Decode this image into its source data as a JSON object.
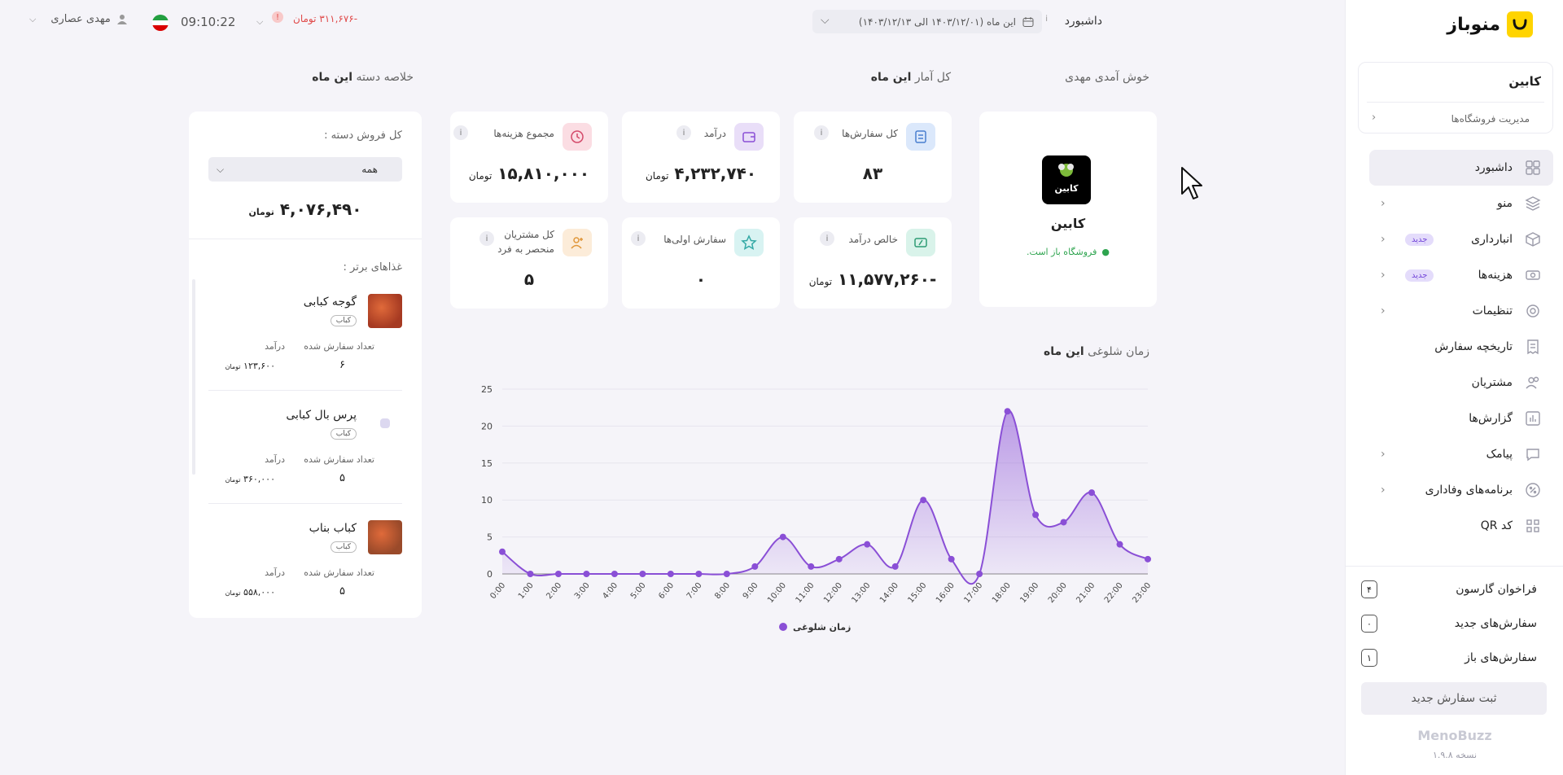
{
  "sidebar": {
    "brand_name": "منوباز",
    "store": {
      "name": "کابین",
      "manage_label": "مدیریت فروشگاه‌ها"
    },
    "items": [
      {
        "label": "داشبورد",
        "icon": "grid-icon",
        "active": true,
        "chevron": false,
        "badge": ""
      },
      {
        "label": "منو",
        "icon": "layers-icon",
        "chevron": true,
        "badge": ""
      },
      {
        "label": "انبارداری",
        "icon": "box-icon",
        "chevron": true,
        "badge": "جدید"
      },
      {
        "label": "هزینه‌ها",
        "icon": "money-icon",
        "chevron": true,
        "badge": "جدید"
      },
      {
        "label": "تنظیمات",
        "icon": "gear-icon",
        "chevron": true,
        "badge": ""
      },
      {
        "label": "تاریخچه سفارش",
        "icon": "receipt-icon",
        "chevron": false,
        "badge": ""
      },
      {
        "label": "مشتریان",
        "icon": "users-icon",
        "chevron": false,
        "badge": ""
      },
      {
        "label": "گزارش‌ها",
        "icon": "chart-icon",
        "chevron": false,
        "badge": ""
      },
      {
        "label": "پیامک",
        "icon": "message-icon",
        "chevron": true,
        "badge": ""
      },
      {
        "label": "برنامه‌های وفاداری",
        "icon": "percent-icon",
        "chevron": true,
        "badge": ""
      },
      {
        "label": "کد QR",
        "icon": "qr-icon",
        "chevron": false,
        "badge": ""
      }
    ],
    "counters": [
      {
        "label": "فراخوان گارسون",
        "value": "۴"
      },
      {
        "label": "سفارش‌های جدید",
        "value": "۰"
      },
      {
        "label": "سفارش‌های باز",
        "value": "۱"
      }
    ],
    "new_order_label": "ثبت سفارش جدید",
    "footer_brand": "MenoBuzz",
    "version": "نسخه ۱.۹.۸"
  },
  "header": {
    "title": "داشبورد",
    "info": "i",
    "date_range": "این ماه (۱۴۰۳/۱۲/۰۱ الی ۱۴۰۳/۱۲/۱۳)",
    "balance": "-۳۱۱,۶۷۶ تومان",
    "alert": "!",
    "clock": "09:10:22",
    "user_name": "مهدی عصاری"
  },
  "sections": {
    "welcome": "خوش آمدی مهدی",
    "stats_title_prefix": "کل آمار",
    "stats_title_bold": "این ماه",
    "category_prefix": "خلاصه دسته",
    "category_bold": "این ماه",
    "busy_prefix": "زمان شلوغی",
    "busy_bold": "این ماه"
  },
  "store_card": {
    "name": "کابین",
    "logo_text": "کابین",
    "status": "فروشگاه باز است."
  },
  "stats": [
    {
      "label": "کل سفارش‌ها",
      "value": "۸۳",
      "unit": "",
      "icon": "list-icon",
      "bg": "#dbe8fb",
      "fg": "#4a7fd0"
    },
    {
      "label": "درآمد",
      "value": "۴,۲۳۲,۷۴۰",
      "unit": "تومان",
      "icon": "wallet-icon",
      "bg": "#e9def8",
      "fg": "#8a4fd6"
    },
    {
      "label": "مجموع هزینه‌ها",
      "value": "۱۵,۸۱۰,۰۰۰",
      "unit": "تومان",
      "icon": "clock-icon",
      "bg": "#fbdde3",
      "fg": "#d44a6a"
    },
    {
      "label": "خالص درآمد",
      "value": "-۱۱,۵۷۷,۲۶۰",
      "unit": "تومان",
      "icon": "money-percent-icon",
      "bg": "#d9f3ea",
      "fg": "#2e9c74"
    },
    {
      "label": "سفارش اولی‌ها",
      "value": "۰",
      "unit": "",
      "icon": "star-icon",
      "bg": "#d8f3f2",
      "fg": "#33a9a5"
    },
    {
      "label": "کل مشتریان منحصر به فرد",
      "value": "۵",
      "unit": "",
      "icon": "user-plus-icon",
      "bg": "#fcecd9",
      "fg": "#e0973a"
    }
  ],
  "category_panel": {
    "total_label": "کل فروش دسته :",
    "select_value": "همه",
    "total_value": "۴,۰۷۶,۴۹۰",
    "total_unit": "تومان",
    "top_foods_label": "غذاهای برتر :",
    "foods": [
      {
        "name": "گوجه کبابی",
        "tag": "کباب",
        "count_label": "تعداد سفارش شده",
        "revenue_label": "درآمد",
        "count": "۶",
        "revenue": "۱۲۳,۶۰۰",
        "unit": "تومان",
        "thumb": "#a63a22"
      },
      {
        "name": "پرس بال کبابی",
        "tag": "کباب",
        "count_label": "تعداد سفارش شده",
        "revenue_label": "درآمد",
        "count": "۵",
        "revenue": "۳۶۰,۰۰۰",
        "unit": "تومان",
        "thumb": ""
      },
      {
        "name": "کباب بناب",
        "tag": "کباب",
        "count_label": "تعداد سفارش شده",
        "revenue_label": "درآمد",
        "count": "۵",
        "revenue": "۵۵۸,۰۰۰",
        "unit": "تومان",
        "thumb": "#9a4a2a"
      }
    ]
  },
  "chart_data": {
    "type": "area",
    "x": [
      "0:00",
      "1:00",
      "2:00",
      "3:00",
      "4:00",
      "5:00",
      "6:00",
      "7:00",
      "8:00",
      "9:00",
      "10:00",
      "11:00",
      "12:00",
      "13:00",
      "14:00",
      "15:00",
      "16:00",
      "17:00",
      "18:00",
      "19:00",
      "20:00",
      "21:00",
      "22:00",
      "23:00"
    ],
    "series": [
      {
        "name": "زمان شلوغی",
        "values": [
          3,
          0,
          0,
          0,
          0,
          0,
          0,
          0,
          0,
          1,
          5,
          1,
          2,
          4,
          1,
          10,
          2,
          0,
          22,
          8,
          7,
          11,
          4,
          2
        ],
        "color": "#8a4fd6"
      }
    ],
    "ylim": [
      0,
      25
    ],
    "yticks": [
      0,
      5,
      10,
      15,
      20,
      25
    ],
    "legend": "bottom-center",
    "grid": true
  }
}
